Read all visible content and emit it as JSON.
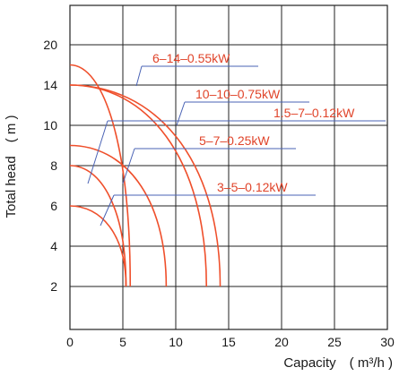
{
  "chart_data": {
    "type": "line",
    "xlabel": "Capacity　( m³/h )",
    "ylabel": "Total head　( m )",
    "x_ticks": [
      0,
      5,
      10,
      15,
      20,
      25,
      30
    ],
    "y_ticks": [
      2,
      4,
      6,
      8,
      10,
      14,
      20
    ],
    "xlim": [
      0,
      30
    ],
    "grid": true,
    "line_color": "#ef4f2b",
    "leader_color": "#4a63b5",
    "series": [
      {
        "name": "6–14–0.55kW",
        "peak": 17.0,
        "end": 5.7
      },
      {
        "name": "10–10–0.75kW",
        "peak": 14.0,
        "end": 14.2
      },
      {
        "name": "1.5–7–0.12kW",
        "peak": 14.0,
        "end": 12.9
      },
      {
        "name": "5–7–0.25kW",
        "peak": 9.0,
        "end": 9.1
      },
      {
        "name": "3–5–0.12kW",
        "peak": 6.0,
        "end": 5.3
      },
      {
        "name": "",
        "peak": 8.0,
        "end": 5.3
      }
    ]
  }
}
